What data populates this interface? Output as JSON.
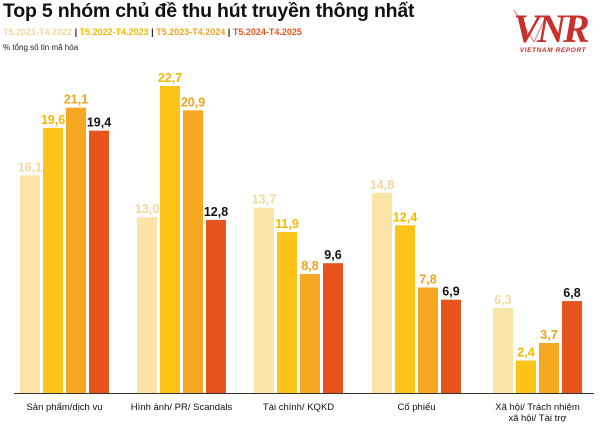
{
  "header": {
    "title": "Top 5 nhóm chủ đề thu hút truyền thông nhất",
    "unit": "% tổng số tin mã hóa",
    "separator": "|"
  },
  "logo": {
    "mark": "VNR",
    "sub": "VIETNAM REPORT"
  },
  "colors": {
    "accent": "#e8541e",
    "series": [
      "#fce3a6",
      "#fcc419",
      "#f6a823",
      "#e8541e"
    ],
    "baseline": "#333333"
  },
  "chart_data": {
    "type": "bar",
    "title": "Top 5 nhóm chủ đề thu hút truyền thông nhất",
    "ylabel": "% tổng số tin mã hóa",
    "ylim": [
      0,
      25
    ],
    "grid": false,
    "legend_position": "top-left",
    "categories": [
      "Sản phẩm/dịch vụ",
      "Hình ảnh/ PR/ Scandals",
      "Tài chính/ KQKD",
      "Cổ phiếu",
      "Xã hội/ Trách nhiệm xã hội/ Tài trợ"
    ],
    "category_lines": [
      [
        "Sản phẩm/dịch vụ"
      ],
      [
        "Hình ảnh/ PR/ Scandals"
      ],
      [
        "Tài chính/ KQKD"
      ],
      [
        "Cổ phiếu"
      ],
      [
        "Xã hội/ Trách nhiệm",
        "xã hội/ Tài trợ"
      ]
    ],
    "series": [
      {
        "name": "T5.2021-T4.2022",
        "values": [
          16.1,
          13.0,
          13.7,
          14.8,
          6.3
        ]
      },
      {
        "name": "T5.2022-T4.2023",
        "values": [
          19.6,
          22.7,
          11.9,
          12.4,
          2.4
        ]
      },
      {
        "name": "T5.2023-T4.2024",
        "values": [
          21.1,
          20.9,
          8.8,
          7.8,
          3.7
        ]
      },
      {
        "name": "T5.2024-T4.2025",
        "values": [
          19.4,
          12.8,
          9.6,
          6.9,
          6.8
        ]
      }
    ],
    "value_labels": [
      [
        "16,1",
        "13,0",
        "13,7",
        "14,8",
        "6,3"
      ],
      [
        "19,6",
        "22,7",
        "11,9",
        "12,4",
        "2,4"
      ],
      [
        "21,1",
        "20,9",
        "8,8",
        "7,8",
        "3,7"
      ],
      [
        "19,4",
        "12,8",
        "9,6",
        "6,9",
        "6,8"
      ]
    ],
    "label_colors": [
      "#f1d9a0",
      "#f6b800",
      "#f3a31a",
      "#111111"
    ]
  }
}
